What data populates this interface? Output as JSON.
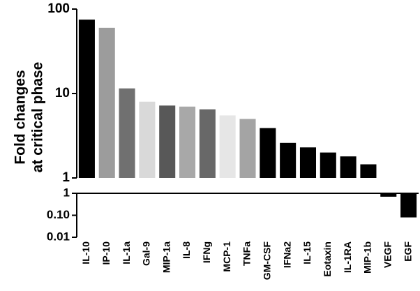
{
  "chart_data": {
    "type": "bar",
    "ylabel": [
      "Fold changes",
      "at critical phase"
    ],
    "categories": [
      "IL-10",
      "IP-10",
      "IL-1a",
      "Gal-9",
      "MIP-1a",
      "IL-8",
      "IFNg",
      "MCP-1",
      "TNFa",
      "GM-CSF",
      "IFNa2",
      "IL-15",
      "Eotaxin",
      "IL-1RA",
      "MIP-1b",
      "VEGF",
      "EGF"
    ],
    "values": [
      75,
      60,
      11.5,
      8,
      7.2,
      7,
      6.5,
      5.5,
      5,
      3.9,
      2.6,
      2.3,
      2.0,
      1.8,
      1.45,
      0.7,
      0.08
    ],
    "colors": [
      "#000000",
      "#9c9c9c",
      "#707070",
      "#d9d9d9",
      "#585858",
      "#a8a8a8",
      "#686868",
      "#e6e6e6",
      "#a4a4a4",
      "#000000",
      "#000000",
      "#000000",
      "#000000",
      "#000000",
      "#000000",
      "#000000",
      "#000000"
    ],
    "log_scale": true,
    "ylim": [
      1,
      100
    ],
    "yticks": [
      1,
      10,
      100
    ],
    "y2lim": [
      0.01,
      1
    ],
    "y2ticks": [
      0.01,
      {
        "value": 0.1,
        "label": "0.10"
      },
      1
    ]
  }
}
